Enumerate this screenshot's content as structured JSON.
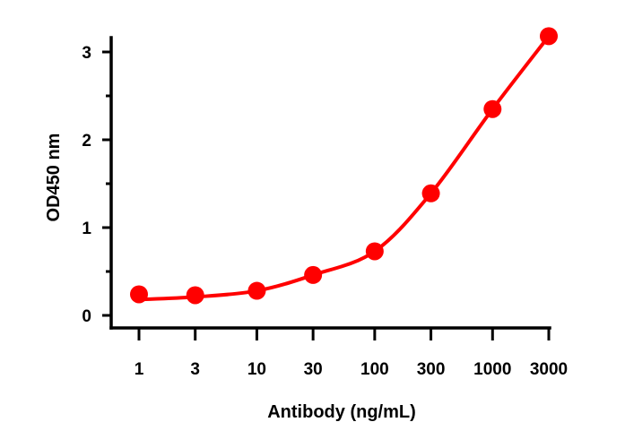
{
  "chart_data": {
    "type": "scatter",
    "title": "",
    "xlabel": "Antibody (ng/mL)",
    "ylabel": "OD450 nm",
    "x_scale": "log",
    "categories": [
      "1",
      "3",
      "10",
      "30",
      "100",
      "300",
      "1000",
      "3000"
    ],
    "x": [
      1,
      3,
      10,
      30,
      100,
      300,
      1000,
      3000
    ],
    "ylim": [
      0,
      3.25
    ],
    "yticks": [
      "0",
      "1",
      "2",
      "3"
    ],
    "ytick_values": [
      0,
      1,
      2,
      3
    ],
    "grid": false,
    "legend": "none",
    "series": [
      {
        "values": [
          0.24,
          0.23,
          0.28,
          0.46,
          0.73,
          1.39,
          2.35,
          3.18
        ],
        "color": "#ff0000",
        "fit_line": true
      }
    ]
  }
}
